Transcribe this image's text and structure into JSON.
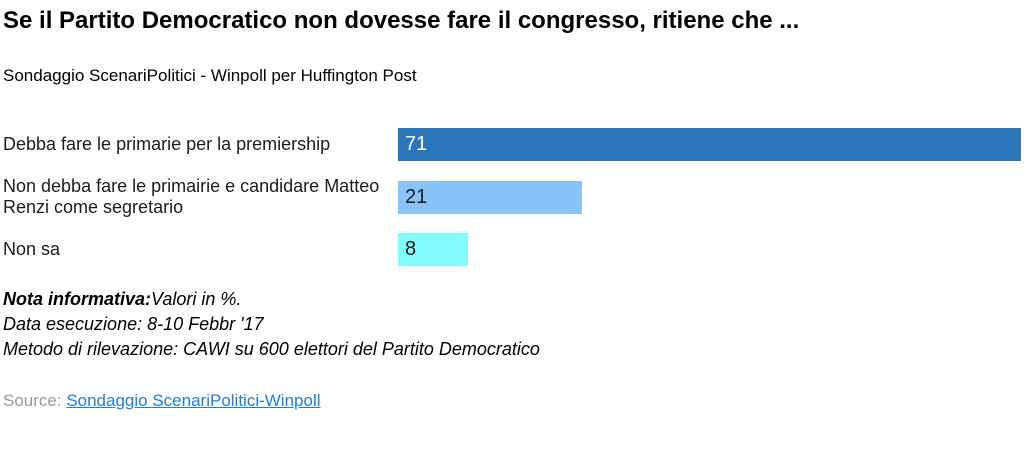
{
  "header": {
    "title": "Se il Partito Democratico non dovesse fare il congresso, ritiene che ...",
    "subtitle": "Sondaggio ScenariPolitici - Winpoll per Huffington Post"
  },
  "chart_data": {
    "type": "bar",
    "orientation": "horizontal",
    "title": "Se il Partito Democratico non dovesse fare il congresso, ritiene che ...",
    "subtitle": "Sondaggio ScenariPolitici - Winpoll per Huffington Post",
    "unit": "%",
    "xlim": [
      0,
      71
    ],
    "grid": false,
    "legend": false,
    "categories": [
      "Debba fare le primarie per la premiership",
      "Non debba fare le primairie e candidare Matteo Renzi come segretario",
      "Non sa"
    ],
    "values": [
      71,
      21,
      8
    ],
    "max_value": 71,
    "rows": [
      {
        "label": "Debba fare le primarie per la premiership",
        "value": 71,
        "color": "#2b76b9",
        "value_color": "#ffffff"
      },
      {
        "label": "Non debba fare le primairie e candidare Matteo Renzi come segretario",
        "value": 21,
        "color": "#89c4f8",
        "value_color": "#1a1a1a"
      },
      {
        "label": "Non sa",
        "value": 8,
        "color": "#83fbfa",
        "value_color": "#1a1a1a"
      }
    ]
  },
  "notes": {
    "bold_label": "Nota informativa:",
    "line1_rest": "Valori in %.",
    "line2": "Data esecuzione: 8-10 Febbr '17",
    "line3": "Metodo di rilevazione: CAWI su 600 elettori del Partito Democratico"
  },
  "source": {
    "label": "Source: ",
    "link_text": "Sondaggio ScenariPolitici-Winpoll",
    "link_color": "#2080d0"
  }
}
